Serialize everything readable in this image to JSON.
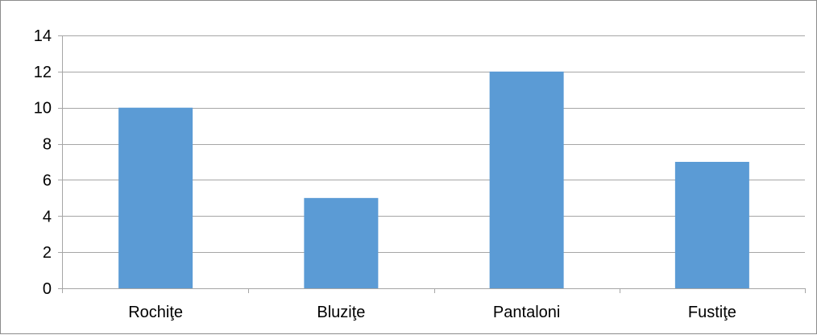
{
  "chart_data": {
    "type": "bar",
    "title": "",
    "xlabel": "",
    "ylabel": "",
    "categories": [
      "Rochiţe",
      "Bluziţe",
      "Pantaloni",
      "Fustiţe"
    ],
    "values": [
      10,
      5,
      12,
      7
    ],
    "ylim": [
      0,
      14
    ],
    "yticks": [
      "0",
      "2",
      "4",
      "6",
      "8",
      "10",
      "12",
      "14"
    ],
    "grid": true,
    "legend": "none",
    "bar_color": "#5b9bd5",
    "gridline_color": "#a6a6a6"
  }
}
